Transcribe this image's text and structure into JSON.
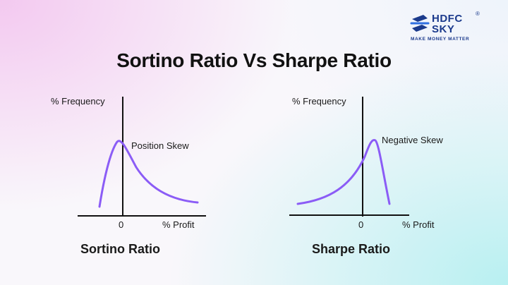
{
  "brand": {
    "name_line1": "HDFC",
    "name_line2": "SKY",
    "registered_mark": "®",
    "tagline": "MAKE MONEY MATTER",
    "color": "#1b3a8c"
  },
  "title": "Sortino Ratio Vs Sharpe Ratio",
  "curve_color": "#8b5cf6",
  "panels": [
    {
      "y_axis_label": "% Frequency",
      "x_axis_label": "% Profit",
      "origin_label": "0",
      "skew_label": "Position Skew",
      "caption": "Sortino Ratio"
    },
    {
      "y_axis_label": "% Frequency",
      "x_axis_label": "% Profit",
      "origin_label": "0",
      "skew_label": "Negative Skew",
      "caption": "Sharpe Ratio"
    }
  ]
}
